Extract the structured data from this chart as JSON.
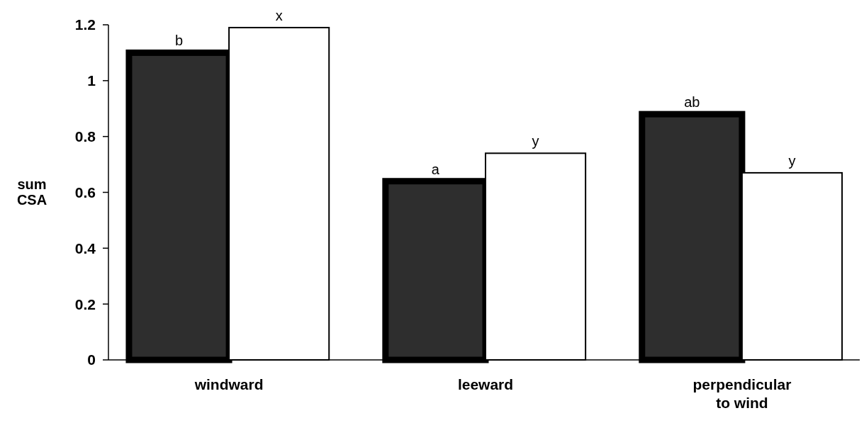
{
  "chart_data": {
    "type": "bar",
    "ylabel": "sum CSA",
    "categories": [
      "windward",
      "leeward",
      "perpendicular to wind"
    ],
    "series": [
      {
        "color": "#2e2e2e",
        "values": [
          1.1,
          0.64,
          0.88
        ],
        "value_labels": [
          "b",
          "a",
          "ab"
        ]
      },
      {
        "color": "#ffffff",
        "values": [
          1.19,
          0.74,
          0.67
        ],
        "value_labels": [
          "x",
          "y",
          "y"
        ]
      }
    ],
    "ylim": [
      0,
      1.2
    ],
    "yticks": [
      0,
      {
        "value": 0.2,
        "label": "0.2"
      },
      {
        "value": 0.4,
        "label": "0.4"
      },
      {
        "value": 0.6,
        "label": "0.6"
      },
      {
        "value": 0.8,
        "label": "0.8"
      },
      1,
      {
        "value": 1.2,
        "label": "1.2"
      }
    ],
    "grid": false
  }
}
